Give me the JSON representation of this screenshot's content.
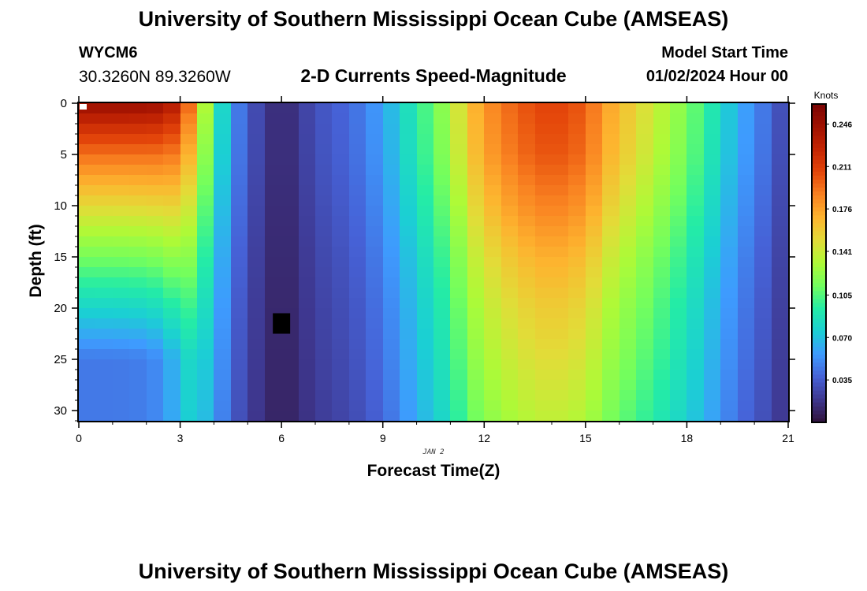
{
  "title": "University of Southern Mississippi Ocean Cube (AMSEAS)",
  "footer_title": "University of Southern Mississippi Ocean Cube (AMSEAS)",
  "station": {
    "id": "WYCM6",
    "coords": "30.3260N  89.3260W"
  },
  "model_start": {
    "label": "Model Start Time",
    "value": "01/02/2024 Hour 00"
  },
  "chart_data": {
    "type": "heatmap",
    "title": "2-D Currents Speed-Magnitude",
    "xlabel": "Forecast Time(Z)",
    "ylabel": "Depth (ft)",
    "date_label": "JAN 2",
    "xlim": [
      0,
      21
    ],
    "ylim": [
      0,
      31
    ],
    "x_ticks": [
      0,
      3,
      6,
      9,
      12,
      15,
      18,
      21
    ],
    "y_ticks": [
      0,
      5,
      10,
      15,
      20,
      25,
      30
    ],
    "colorbar": {
      "units": "Knots",
      "min": 0,
      "max": 0.2625,
      "ticks": [
        "0.246",
        "0.211",
        "0.176",
        "0.141",
        "0.105",
        "0.070",
        "0.035"
      ],
      "tick_values": [
        0.246,
        0.211,
        0.176,
        0.141,
        0.105,
        0.07,
        0.035
      ],
      "colors": [
        "#30123b",
        "#3e378f",
        "#4662d7",
        "#3e9bfe",
        "#1bcfd4",
        "#24eca6",
        "#72fe5e",
        "#aefa37",
        "#e2dc38",
        "#fdb42f",
        "#f98221",
        "#e4460a",
        "#c42503",
        "#a01101",
        "#7a0403"
      ]
    },
    "time_profile": [
      [
        0,
        0.255
      ],
      [
        1,
        0.24
      ],
      [
        2,
        0.21
      ],
      [
        3,
        0.175
      ],
      [
        3.5,
        0.13
      ],
      [
        4,
        0.09
      ],
      [
        4.5,
        0.055
      ],
      [
        5,
        0.035
      ],
      [
        5.5,
        0.02
      ],
      [
        6,
        0.01
      ],
      [
        6.5,
        0.02
      ],
      [
        7,
        0.03
      ],
      [
        7.5,
        0.035
      ],
      [
        8,
        0.04
      ],
      [
        8.5,
        0.048
      ],
      [
        9,
        0.06
      ],
      [
        9.5,
        0.075
      ],
      [
        10,
        0.095
      ],
      [
        10.5,
        0.11
      ],
      [
        11,
        0.13
      ],
      [
        11.5,
        0.16
      ],
      [
        12,
        0.18
      ],
      [
        13,
        0.2
      ],
      [
        14,
        0.21
      ],
      [
        15,
        0.2
      ],
      [
        15.5,
        0.18
      ],
      [
        16,
        0.165
      ],
      [
        16.5,
        0.155
      ],
      [
        17,
        0.14
      ],
      [
        17.5,
        0.13
      ],
      [
        18,
        0.115
      ],
      [
        18.5,
        0.1
      ],
      [
        19,
        0.08
      ],
      [
        19.5,
        0.065
      ],
      [
        20,
        0.05
      ],
      [
        20.5,
        0.04
      ],
      [
        21,
        0.02
      ]
    ],
    "depth_profile": [
      [
        0,
        1.0
      ],
      [
        5,
        0.97
      ],
      [
        10,
        0.9
      ],
      [
        15,
        0.82
      ],
      [
        20,
        0.76
      ],
      [
        25,
        0.72
      ],
      [
        31,
        0.66
      ]
    ],
    "surface_left_speed": 0.25,
    "deep_left_speed": 0.045,
    "missing_cell": {
      "time": 6.0,
      "depth": 21.5
    }
  }
}
